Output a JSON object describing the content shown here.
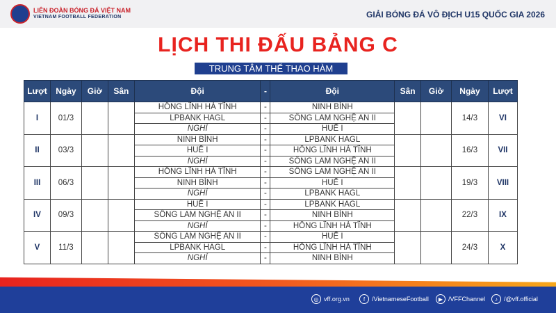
{
  "header": {
    "org_name": "LIÊN ĐOÀN BÓNG ĐÁ VIỆT NAM",
    "org_name_en": "VIETNAM FOOTBALL FEDERATION",
    "tournament": "GIẢI BÓNG ĐÁ VÔ ĐỊCH U15 QUỐC GIA 2026"
  },
  "title": "LỊCH THI ĐẤU BẢNG C",
  "venue": "TRUNG TÂM THỂ THAO HÀM RỒNG",
  "columns": [
    "Lượt",
    "Ngày",
    "Giờ",
    "Sân",
    "Đội",
    "-",
    "Đội",
    "Sân",
    "Giờ",
    "Ngày",
    "Lượt"
  ],
  "rounds": [
    {
      "round": "I",
      "date": "01/3",
      "return_date": "14/3",
      "return_round": "VI",
      "matches": [
        [
          "HỒNG LĨNH HÀ TĨNH",
          "NINH BÌNH"
        ],
        [
          "LPBANK HAGL",
          "SÔNG LAM NGHỆ AN II"
        ],
        [
          "NGHỈ",
          "HUẾ I"
        ]
      ]
    },
    {
      "round": "II",
      "date": "03/3",
      "return_date": "16/3",
      "return_round": "VII",
      "matches": [
        [
          "NINH BÌNH",
          "LPBANK HAGL"
        ],
        [
          "HUẾ I",
          "HỒNG LĨNH HÀ TĨNH"
        ],
        [
          "NGHỈ",
          "SÔNG LAM NGHỆ AN II"
        ]
      ]
    },
    {
      "round": "III",
      "date": "06/3",
      "return_date": "19/3",
      "return_round": "VIII",
      "matches": [
        [
          "HỒNG LĨNH HÀ TĨNH",
          "SÔNG LAM NGHỆ AN II"
        ],
        [
          "NINH BÌNH",
          "HUẾ I"
        ],
        [
          "NGHỈ",
          "LPBANK HAGL"
        ]
      ]
    },
    {
      "round": "IV",
      "date": "09/3",
      "return_date": "22/3",
      "return_round": "IX",
      "matches": [
        [
          "HUẾ I",
          "LPBANK HAGL"
        ],
        [
          "SÔNG LAM NGHỆ AN II",
          "NINH BÌNH"
        ],
        [
          "NGHỈ",
          "HỒNG LĨNH HÀ TĨNH"
        ]
      ]
    },
    {
      "round": "V",
      "date": "11/3",
      "return_date": "24/3",
      "return_round": "X",
      "matches": [
        [
          "SÔNG LAM NGHỆ AN II",
          "HUẾ I"
        ],
        [
          "LPBANK HAGL",
          "HỒNG LĨNH HÀ TĨNH"
        ],
        [
          "NGHỈ",
          "NINH BÌNH"
        ]
      ]
    }
  ],
  "footer": {
    "website": "vff.org.vn",
    "facebook": "/VietnameseFootball",
    "youtube": "/VFFChannel",
    "tiktok": "/@vff.official"
  },
  "colors": {
    "title": "#e8231f",
    "header_bg": "#2c4a7a",
    "footer_bg": "#1f3f9a"
  }
}
